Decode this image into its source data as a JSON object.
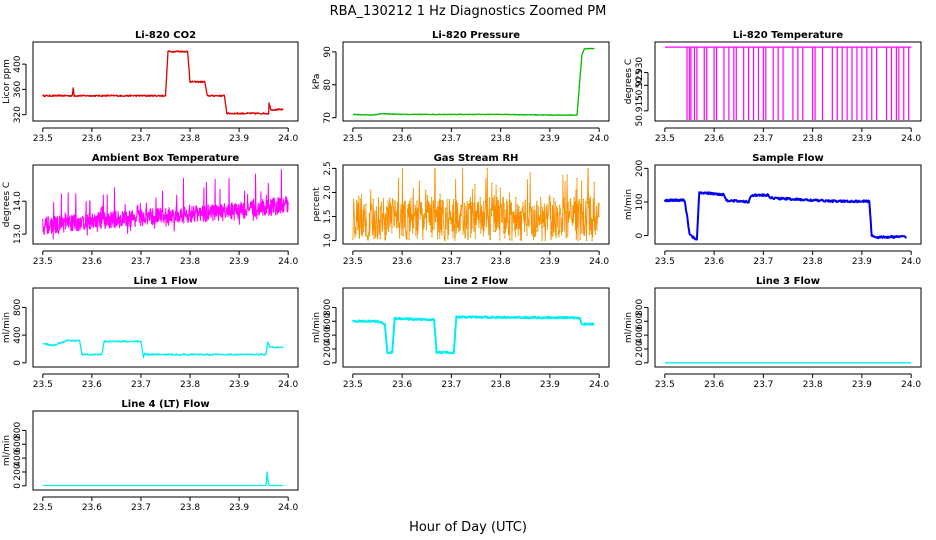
{
  "figure": {
    "title": "RBA_130212  1 Hz Diagnostics Zoomed PM",
    "xlabel": "Hour of Day (UTC)"
  },
  "colors": {
    "red": "#dd0000",
    "green": "#00bb00",
    "magenta": "#ff00ff",
    "orange": "#ff8c00",
    "orange_dot": "#ccaa00",
    "blue": "#0000ee",
    "cyan": "#00eeee"
  },
  "chart_data": [
    {
      "id": "co2",
      "type": "line",
      "title": "Li-820 CO2",
      "ylabel": "Licor ppm",
      "color": "red",
      "xlim": [
        23.48,
        24.02
      ],
      "ylim": [
        310,
        435
      ],
      "xticks": [
        "23.5",
        "23.6",
        "23.7",
        "23.8",
        "23.9",
        "24.0"
      ],
      "yticks": [
        "320",
        "360",
        "400"
      ],
      "x": [
        23.5,
        23.56,
        23.562,
        23.564,
        23.75,
        23.755,
        23.795,
        23.8,
        23.83,
        23.835,
        23.84,
        23.87,
        23.875,
        23.96,
        23.961,
        23.965,
        23.99
      ],
      "y": [
        350,
        350,
        362,
        350,
        350,
        420,
        420,
        372,
        372,
        350,
        350,
        350,
        322,
        322,
        338,
        328,
        328
      ]
    },
    {
      "id": "pressure",
      "type": "line",
      "title": "Li-820 Pressure",
      "ylabel": "kPa",
      "color": "green",
      "xlim": [
        23.48,
        24.02
      ],
      "ylim": [
        69,
        93
      ],
      "xticks": [
        "23.5",
        "23.6",
        "23.7",
        "23.8",
        "23.9",
        "24.0"
      ],
      "yticks": [
        "70",
        "80",
        "90"
      ],
      "x": [
        23.5,
        23.54,
        23.56,
        23.6,
        23.7,
        23.8,
        23.9,
        23.955,
        23.96,
        23.965,
        23.97,
        23.99
      ],
      "y": [
        71,
        70.8,
        71.2,
        71,
        71,
        71,
        70.8,
        70.8,
        80,
        89,
        91,
        91
      ]
    },
    {
      "id": "licor_temp",
      "type": "line",
      "title": "Li-820 Temperature",
      "ylabel": "degrees C",
      "color": "magenta",
      "xlim": [
        23.48,
        24.02
      ],
      "ylim": [
        50.911,
        50.942
      ],
      "xticks": [
        "23.5",
        "23.6",
        "23.7",
        "23.8",
        "23.9",
        "24.0"
      ],
      "yticks": [
        "50.915",
        "50.925",
        "50.930"
      ],
      "baseline": 50.94,
      "low": 50.911,
      "dropouts": [
        23.545,
        23.55,
        23.553,
        23.56,
        23.565,
        23.58,
        23.585,
        23.6,
        23.605,
        23.62,
        23.63,
        23.64,
        23.645,
        23.66,
        23.67,
        23.68,
        23.69,
        23.7,
        23.705,
        23.72,
        23.73,
        23.74,
        23.76,
        23.77,
        23.78,
        23.8,
        23.805,
        23.82,
        23.84,
        23.85,
        23.86,
        23.87,
        23.88,
        23.89,
        23.9,
        23.91,
        23.92,
        23.93,
        23.95,
        23.96,
        23.97,
        23.975,
        23.985,
        23.995
      ]
    },
    {
      "id": "ambient_temp",
      "type": "line",
      "title": "Ambient Box Temperature",
      "ylabel": "degrees C",
      "color": "magenta",
      "xlim": [
        23.48,
        24.02
      ],
      "ylim": [
        12.7,
        15.1
      ],
      "xticks": [
        "23.5",
        "23.6",
        "23.7",
        "23.8",
        "23.9",
        "24.0"
      ],
      "yticks": [
        "13.0",
        "14.0"
      ],
      "trend": [
        [
          23.5,
          13.25
        ],
        [
          23.6,
          13.4
        ],
        [
          23.7,
          13.5
        ],
        [
          23.8,
          13.6
        ],
        [
          23.9,
          13.7
        ],
        [
          24.0,
          13.9
        ]
      ]
    },
    {
      "id": "rh",
      "type": "scatter",
      "title": "Gas Stream RH",
      "ylabel": "percent",
      "color": "orange",
      "xlim": [
        23.48,
        24.02
      ],
      "ylim": [
        0.93,
        2.57
      ],
      "xticks": [
        "23.5",
        "23.6",
        "23.7",
        "23.8",
        "23.9",
        "24.0"
      ],
      "yticks": [
        "1.0",
        "1.5",
        "2.0",
        "2.5"
      ],
      "mean": 1.45
    },
    {
      "id": "sample_flow",
      "type": "line",
      "title": "Sample Flow",
      "ylabel": "ml/min",
      "color": "blue",
      "xlim": [
        23.48,
        24.02
      ],
      "ylim": [
        -25,
        210
      ],
      "xticks": [
        "23.5",
        "23.6",
        "23.7",
        "23.8",
        "23.9",
        "24.0"
      ],
      "yticks": [
        "0",
        "100",
        "200"
      ],
      "x": [
        23.5,
        23.54,
        23.545,
        23.55,
        23.56,
        23.565,
        23.57,
        23.62,
        23.625,
        23.67,
        23.675,
        23.71,
        23.715,
        23.8,
        23.85,
        23.915,
        23.92,
        23.93,
        23.99
      ],
      "y": [
        105,
        105,
        60,
        5,
        -8,
        -10,
        128,
        122,
        105,
        100,
        120,
        120,
        112,
        105,
        102,
        102,
        0,
        -5,
        -3
      ]
    },
    {
      "id": "line1",
      "type": "line",
      "title": "Line 1 Flow",
      "ylabel": "ml/min",
      "color": "cyan",
      "xlim": [
        23.48,
        24.02
      ],
      "ylim": [
        -60,
        1080
      ],
      "xticks": [
        "23.5",
        "23.6",
        "23.7",
        "23.8",
        "23.9",
        "24.0"
      ],
      "yticks": [
        "0",
        "400",
        "800"
      ],
      "x": [
        23.5,
        23.52,
        23.55,
        23.575,
        23.58,
        23.62,
        23.625,
        23.7,
        23.705,
        23.708,
        23.71,
        23.955,
        23.958,
        23.962,
        23.99
      ],
      "y": [
        280,
        250,
        320,
        320,
        120,
        120,
        310,
        310,
        80,
        140,
        120,
        120,
        300,
        230,
        220
      ]
    },
    {
      "id": "line2",
      "type": "line",
      "title": "Line 2 Flow",
      "ylabel": "ml/min",
      "color": "cyan",
      "xlim": [
        23.48,
        24.02
      ],
      "ylim": [
        -60,
        1080
      ],
      "xticks": [
        "23.5",
        "23.6",
        "23.7",
        "23.8",
        "23.9",
        "24.0"
      ],
      "yticks": [
        "0",
        "200",
        "400",
        "600",
        "800"
      ],
      "x": [
        23.5,
        23.55,
        23.565,
        23.57,
        23.58,
        23.585,
        23.665,
        23.67,
        23.705,
        23.71,
        23.96,
        23.965,
        23.99
      ],
      "y": [
        600,
        600,
        560,
        150,
        150,
        640,
        620,
        150,
        150,
        660,
        650,
        560,
        560
      ]
    },
    {
      "id": "line3",
      "type": "line",
      "title": "Line 3 Flow",
      "ylabel": "ml/min",
      "color": "cyan",
      "xlim": [
        23.48,
        24.02
      ],
      "ylim": [
        -60,
        1080
      ],
      "xticks": [
        "23.5",
        "23.6",
        "23.7",
        "23.8",
        "23.9",
        "24.0"
      ],
      "yticks": [
        "0",
        "200",
        "400",
        "600",
        "800"
      ],
      "x": [
        23.5,
        24.0
      ],
      "y": [
        0,
        0
      ]
    },
    {
      "id": "line4",
      "type": "line",
      "title": "Line 4 (LT) Flow",
      "ylabel": "ml/min",
      "color": "cyan",
      "xlim": [
        23.48,
        24.02
      ],
      "ylim": [
        -60,
        1080
      ],
      "xticks": [
        "23.5",
        "23.6",
        "23.7",
        "23.8",
        "23.9",
        "24.0"
      ],
      "yticks": [
        "0",
        "200",
        "400",
        "600",
        "800"
      ],
      "x": [
        23.5,
        23.955,
        23.957,
        23.96,
        23.963,
        23.99
      ],
      "y": [
        5,
        5,
        200,
        20,
        5,
        5
      ]
    }
  ]
}
